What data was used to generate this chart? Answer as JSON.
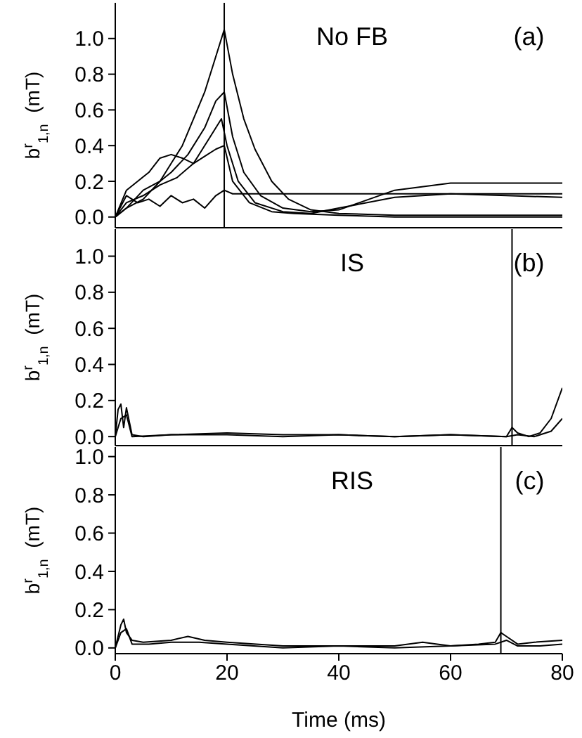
{
  "chart_data": [
    {
      "type": "line",
      "ylabel": "b$^{r}$$_{1,n}$  (mT)",
      "annotations": [
        "No FB",
        "(a)"
      ],
      "xlim": [
        0,
        80
      ],
      "xticks": [
        0,
        20,
        40,
        60,
        80
      ],
      "ylim": [
        -0.06,
        1.2
      ],
      "yticks": [
        {
          "value": 0,
          "label": "0.0"
        },
        {
          "value": 0.2,
          "label": "0.2"
        },
        {
          "value": 0.4,
          "label": "0.4"
        },
        {
          "value": 0.6,
          "label": "0.6"
        },
        {
          "value": 0.8,
          "label": "0.8"
        },
        {
          "value": 1,
          "label": "1.0"
        }
      ],
      "tick_labels": "y",
      "ref_lines": [
        {
          "axis": "x",
          "value": 19.5,
          "label": null
        }
      ],
      "series": [
        {
          "color": "#000000",
          "x": [
            0,
            2,
            5,
            8,
            10,
            12,
            14,
            16,
            18,
            19.5,
            21,
            23,
            25,
            28,
            31,
            35,
            40,
            50,
            60,
            70,
            80
          ],
          "values": [
            0,
            0.05,
            0.1,
            0.2,
            0.3,
            0.4,
            0.55,
            0.7,
            0.9,
            1.05,
            0.8,
            0.55,
            0.38,
            0.2,
            0.1,
            0.04,
            0.02,
            0.01,
            0.01,
            0.01,
            0.01
          ]
        },
        {
          "color": "#000000",
          "x": [
            0,
            2,
            5,
            8,
            10,
            13,
            16,
            18,
            19.5,
            21,
            23,
            26,
            30,
            35,
            40,
            50,
            60,
            70,
            80
          ],
          "values": [
            0,
            0.05,
            0.15,
            0.2,
            0.25,
            0.35,
            0.5,
            0.65,
            0.7,
            0.45,
            0.25,
            0.12,
            0.05,
            0.03,
            0.04,
            0.15,
            0.19,
            0.19,
            0.19
          ]
        },
        {
          "color": "#000000",
          "x": [
            0,
            2,
            5,
            8,
            11,
            14,
            17,
            19,
            20,
            22,
            25,
            30,
            35,
            40,
            50,
            60,
            70,
            80
          ],
          "values": [
            0,
            0.08,
            0.12,
            0.18,
            0.22,
            0.3,
            0.45,
            0.55,
            0.4,
            0.2,
            0.08,
            0.03,
            0.02,
            0.05,
            0.11,
            0.13,
            0.12,
            0.11
          ]
        },
        {
          "color": "#000000",
          "x": [
            0,
            2,
            4,
            6,
            8,
            10,
            12,
            14,
            16,
            18,
            19.5,
            21,
            24,
            28,
            32,
            40,
            50,
            60,
            70,
            80
          ],
          "values": [
            0,
            0.15,
            0.2,
            0.25,
            0.33,
            0.35,
            0.33,
            0.3,
            0.34,
            0.38,
            0.4,
            0.2,
            0.08,
            0.03,
            0.02,
            0.01,
            0,
            0,
            0,
            0
          ]
        },
        {
          "color": "#000000",
          "x": [
            0,
            2,
            4,
            6,
            8,
            10,
            12,
            14,
            16,
            18,
            19.5,
            21,
            25,
            30,
            40,
            50,
            60,
            70,
            80
          ],
          "values": [
            0,
            0.12,
            0.08,
            0.1,
            0.06,
            0.12,
            0.08,
            0.1,
            0.05,
            0.12,
            0.15,
            0.13,
            0.13,
            0.13,
            0.13,
            0.13,
            0.13,
            0.13,
            0.13
          ]
        }
      ]
    },
    {
      "type": "line",
      "ylabel": "b$^{r}$$_{1,n}$  (mT)",
      "annotations": [
        "IS",
        "(b)"
      ],
      "xlim": [
        0,
        80
      ],
      "xticks": [
        0,
        20,
        40,
        60,
        80
      ],
      "ylim": [
        -0.05,
        1.15
      ],
      "yticks": [
        {
          "value": 0,
          "label": "0.0"
        },
        {
          "value": 0.2,
          "label": "0.2"
        },
        {
          "value": 0.4,
          "label": "0.4"
        },
        {
          "value": 0.6,
          "label": "0.6"
        },
        {
          "value": 0.8,
          "label": "0.8"
        },
        {
          "value": 1,
          "label": "1.0"
        }
      ],
      "tick_labels": "y",
      "ref_lines": [
        {
          "axis": "x",
          "value": 71,
          "label": null
        }
      ],
      "series": [
        {
          "color": "#000000",
          "x": [
            0,
            0.5,
            1,
            1.5,
            2,
            3,
            5,
            10,
            20,
            30,
            40,
            50,
            60,
            70,
            71,
            72,
            74,
            76,
            78,
            80
          ],
          "values": [
            0,
            0.15,
            0.18,
            0.05,
            0.16,
            0.01,
            0,
            0.01,
            0.02,
            0.01,
            0.01,
            0,
            0.01,
            0,
            0.05,
            0.02,
            0,
            0.02,
            0.1,
            0.27
          ]
        },
        {
          "color": "#000000",
          "x": [
            0,
            1,
            2,
            3,
            10,
            20,
            30,
            40,
            50,
            60,
            70,
            72,
            75,
            78,
            80
          ],
          "values": [
            0,
            0.1,
            0.12,
            0,
            0.01,
            0.01,
            0,
            0.01,
            0,
            0.01,
            0,
            0.01,
            0,
            0.03,
            0.1
          ]
        }
      ]
    },
    {
      "type": "line",
      "xlabel": "Time (ms)",
      "ylabel": "b$^{r}$$_{1,n}$  (mT)",
      "annotations": [
        "RIS",
        "(c)"
      ],
      "xlim": [
        0,
        80
      ],
      "xticks": [
        0,
        20,
        40,
        60,
        80
      ],
      "ylim": [
        -0.03,
        1.05
      ],
      "yticks": [
        {
          "value": 0,
          "label": "0.0"
        },
        {
          "value": 0.2,
          "label": "0.2"
        },
        {
          "value": 0.4,
          "label": "0.4"
        },
        {
          "value": 0.6,
          "label": "0.6"
        },
        {
          "value": 0.8,
          "label": "0.8"
        },
        {
          "value": 1,
          "label": "1.0"
        }
      ],
      "ref_lines": [
        {
          "axis": "x",
          "value": 69,
          "label": null
        }
      ],
      "series": [
        {
          "color": "#000000",
          "x": [
            0,
            1,
            1.5,
            2,
            3,
            5,
            10,
            13,
            16,
            20,
            30,
            40,
            50,
            55,
            60,
            65,
            68,
            69,
            70,
            72,
            75,
            80
          ],
          "values": [
            0,
            0.12,
            0.15,
            0.08,
            0.04,
            0.03,
            0.04,
            0.06,
            0.04,
            0.03,
            0.01,
            0.01,
            0.01,
            0.03,
            0.01,
            0.02,
            0.03,
            0.08,
            0.06,
            0.02,
            0.03,
            0.04
          ]
        },
        {
          "color": "#000000",
          "x": [
            0,
            1,
            2,
            3,
            6,
            10,
            15,
            20,
            30,
            40,
            50,
            60,
            68,
            70,
            72,
            76,
            80
          ],
          "values": [
            0,
            0.08,
            0.1,
            0.02,
            0.02,
            0.03,
            0.03,
            0.02,
            0,
            0.01,
            0,
            0.01,
            0.02,
            0.04,
            0.01,
            0.01,
            0.02
          ]
        }
      ]
    }
  ]
}
